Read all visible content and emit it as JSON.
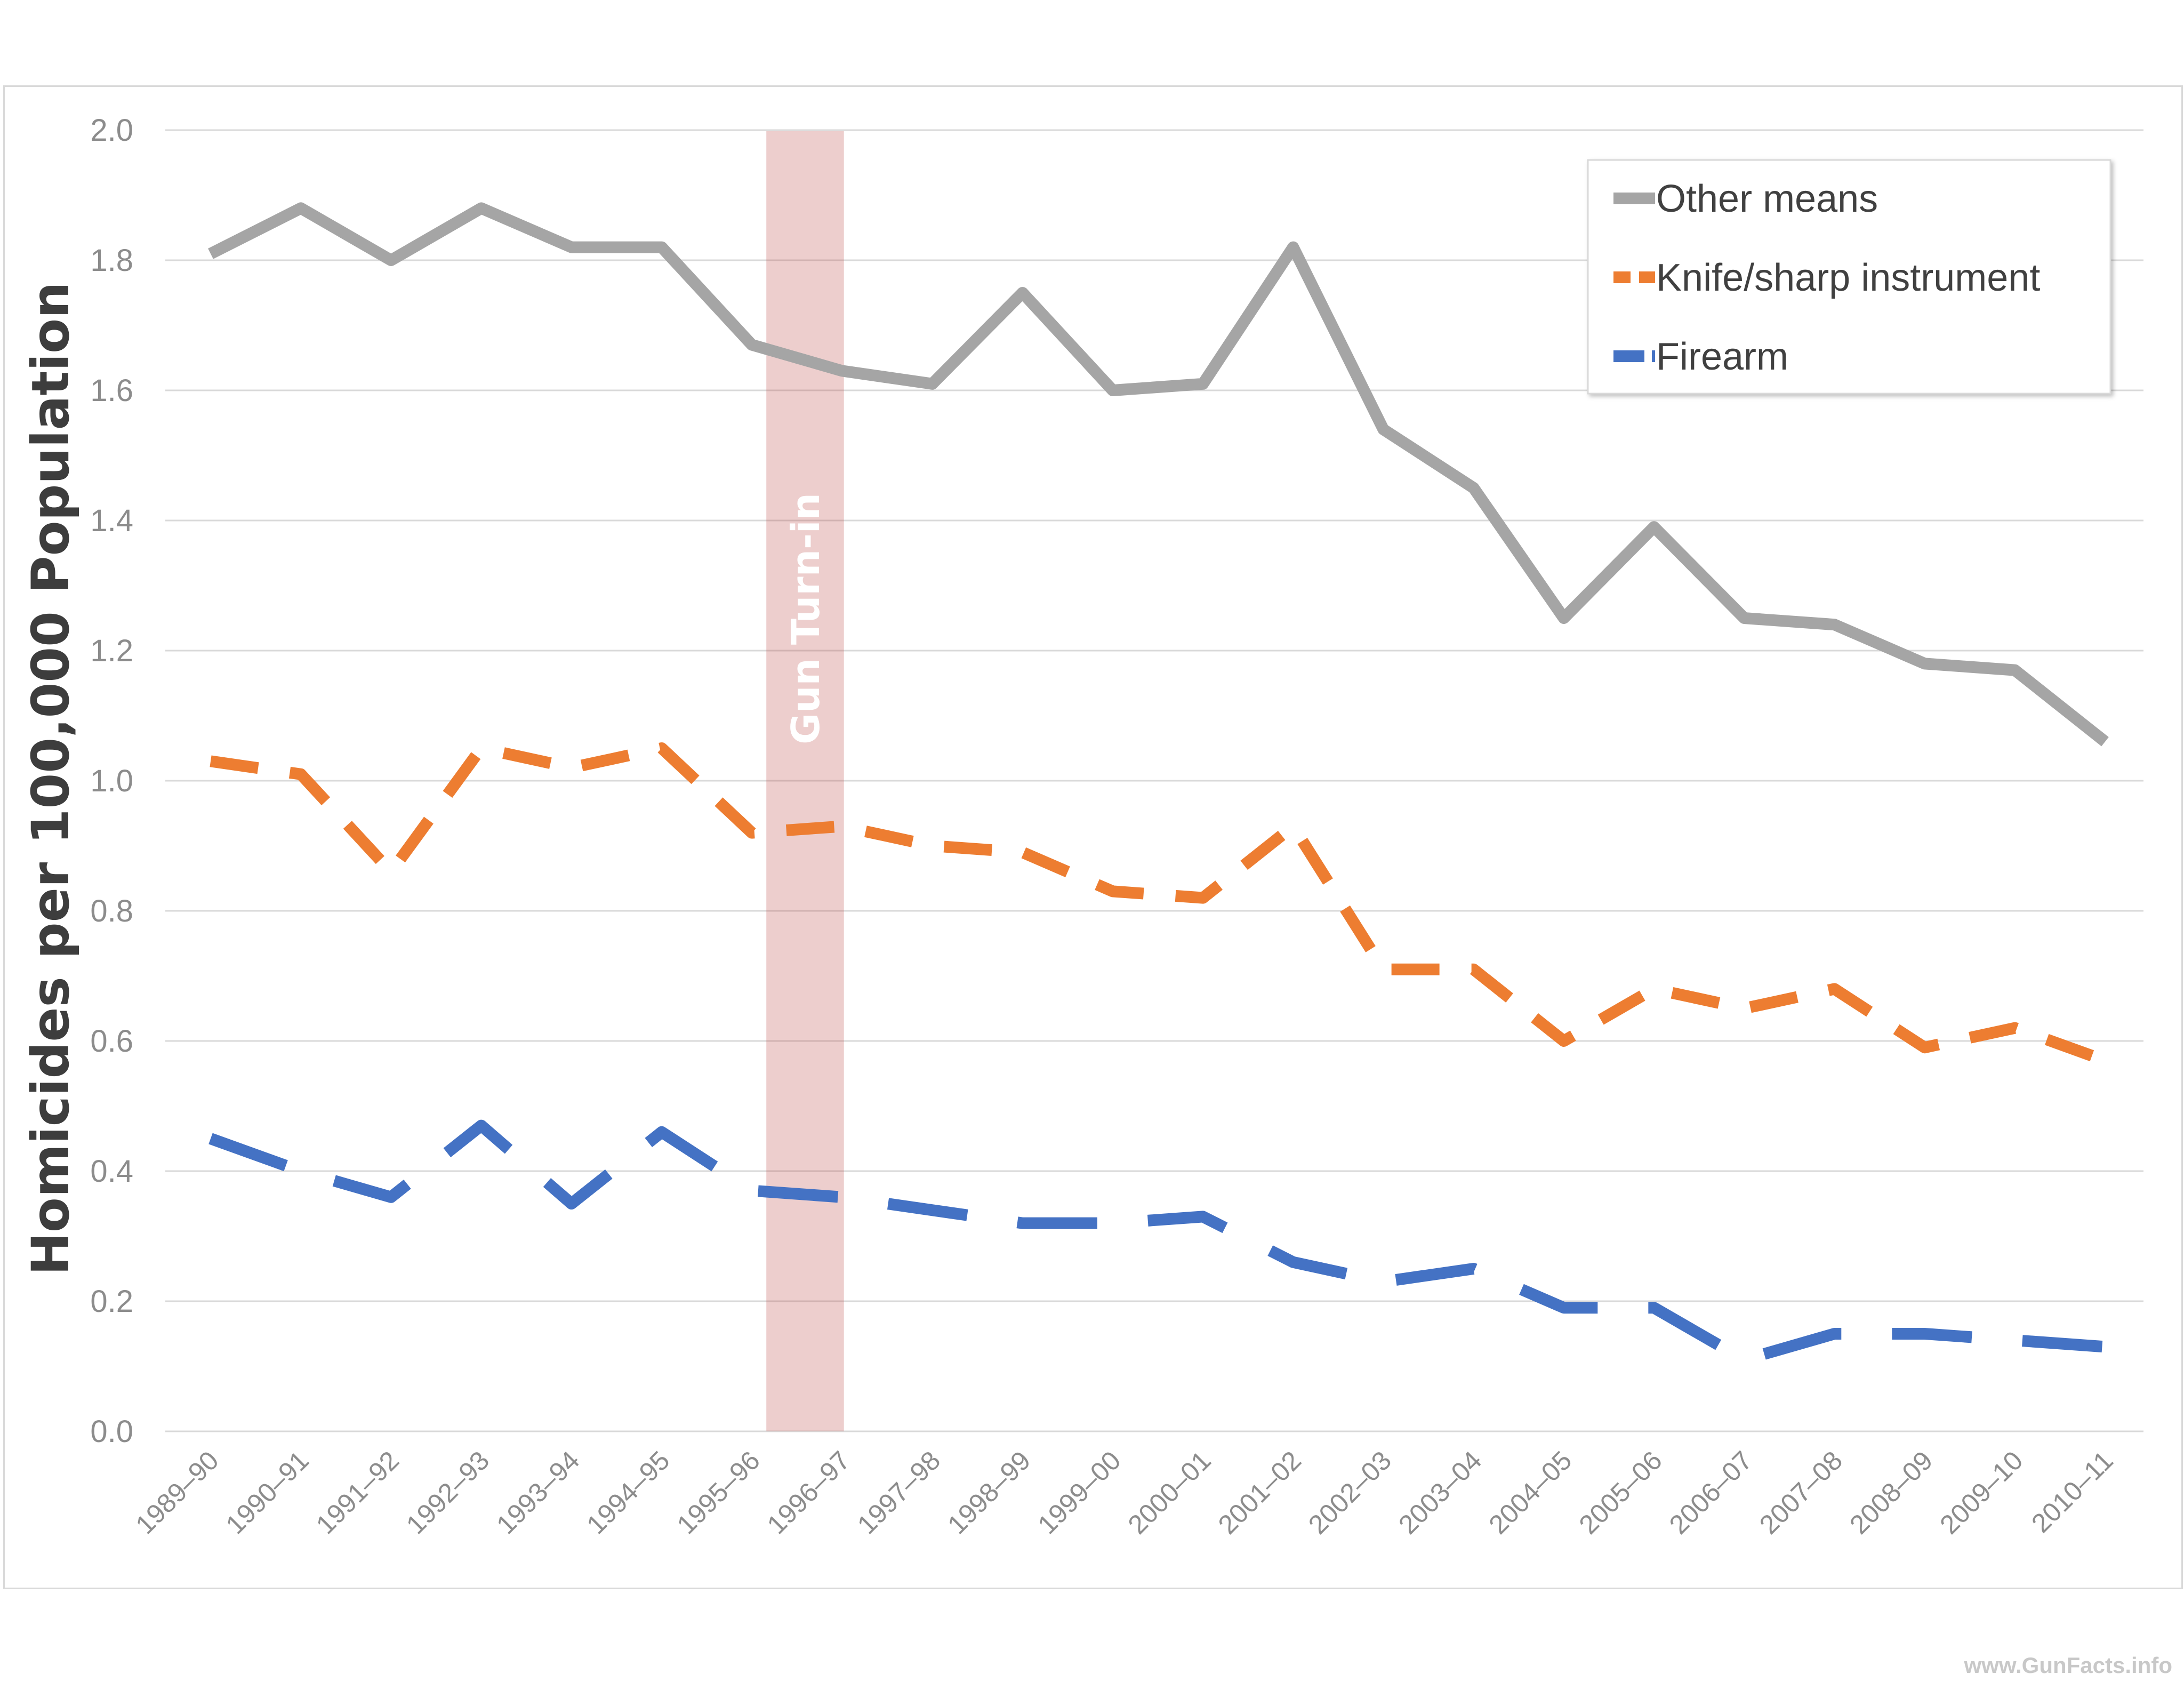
{
  "watermark": "www.GunFacts.info",
  "colors": {
    "other": "#a5a5a5",
    "knife": "#ed7d31",
    "firearm": "#4472c4",
    "band": "#c0504d",
    "grid": "#d9d9d9"
  },
  "chart_data": {
    "type": "line",
    "title": "",
    "xlabel": "",
    "ylabel": "Homicides per 100,000 Population",
    "ylim": [
      0,
      2.0
    ],
    "yticks": [
      "0.0",
      "0.2",
      "0.4",
      "0.6",
      "0.8",
      "1.0",
      "1.2",
      "1.4",
      "1.6",
      "1.8",
      "2.0"
    ],
    "grid": true,
    "legend_position": "top-right",
    "categories": [
      "1989–90",
      "1990–91",
      "1991–92",
      "1992–93",
      "1993–94",
      "1994–95",
      "1995–96",
      "1996–97",
      "1997–98",
      "1998–99",
      "1999–00",
      "2000–01",
      "2001–02",
      "2002–03",
      "2003–04",
      "2004–05",
      "2005–06",
      "2006–07",
      "2007–08",
      "2008–09",
      "2009–10",
      "2010–11"
    ],
    "series": [
      {
        "name": "Other means",
        "style": "solid",
        "color": "#a5a5a5",
        "values": [
          1.81,
          1.88,
          1.8,
          1.88,
          1.82,
          1.82,
          1.67,
          1.63,
          1.61,
          1.75,
          1.6,
          1.61,
          1.82,
          1.54,
          1.45,
          1.25,
          1.39,
          1.25,
          1.24,
          1.18,
          1.17,
          1.06
        ]
      },
      {
        "name": "Knife/sharp instrument",
        "style": "dashed",
        "color": "#ed7d31",
        "values": [
          1.03,
          1.01,
          0.86,
          1.05,
          1.02,
          1.05,
          0.92,
          0.93,
          0.9,
          0.89,
          0.83,
          0.82,
          0.93,
          0.71,
          0.71,
          0.6,
          0.68,
          0.65,
          0.68,
          0.59,
          0.62,
          0.57
        ]
      },
      {
        "name": "Firearm",
        "style": "long-dashed",
        "color": "#4472c4",
        "values": [
          0.45,
          0.4,
          0.36,
          0.47,
          0.35,
          0.46,
          0.37,
          0.36,
          0.34,
          0.32,
          0.32,
          0.33,
          0.26,
          0.23,
          0.25,
          0.19,
          0.19,
          0.11,
          0.15,
          0.15,
          0.14,
          0.13
        ]
      }
    ],
    "annotation": {
      "label": "Gun Turn-in",
      "from_category": "1995–96",
      "to_category": "1996–97"
    }
  }
}
